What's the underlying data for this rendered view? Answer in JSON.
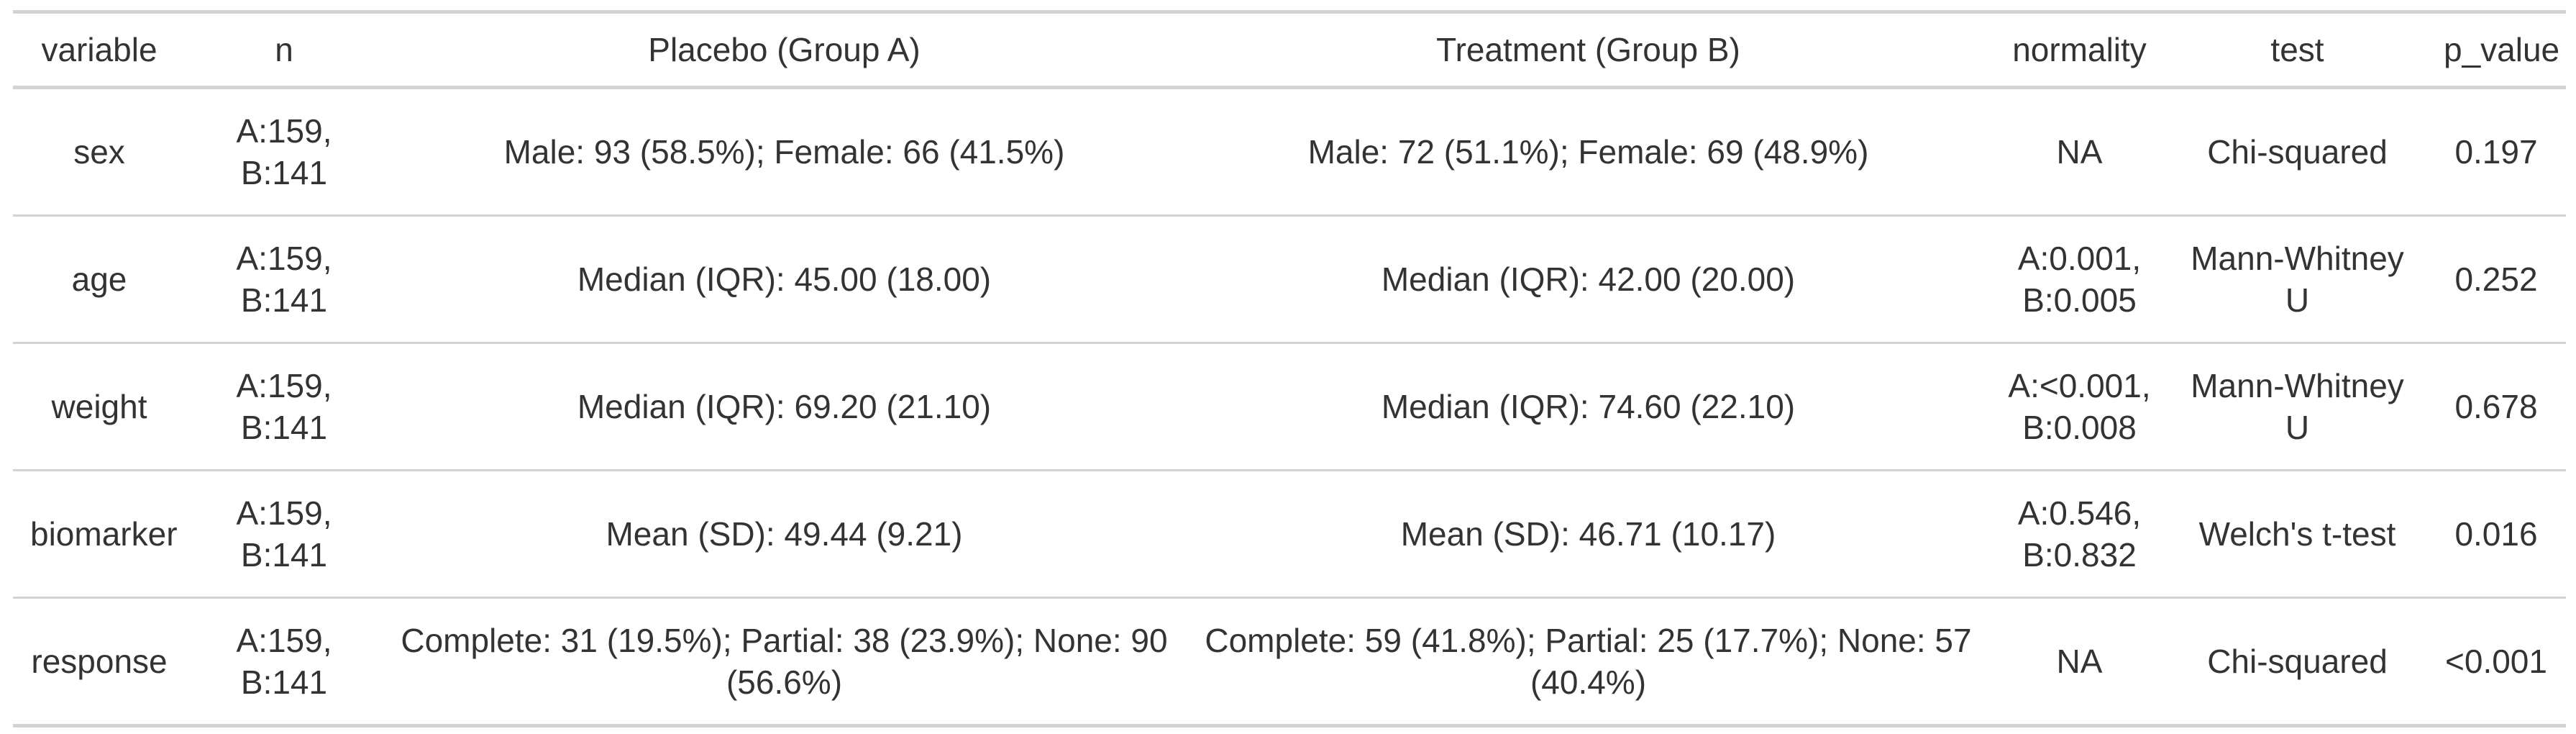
{
  "table": {
    "headers": [
      "variable",
      "n",
      "Placebo (Group A)",
      "Treatment (Group B)",
      "normality",
      "test",
      "p_value"
    ],
    "rows": [
      [
        "sex",
        "A:159, B:141",
        "Male: 93 (58.5%); Female: 66 (41.5%)",
        "Male: 72 (51.1%); Female: 69 (48.9%)",
        "NA",
        "Chi-squared",
        "0.197"
      ],
      [
        "age",
        "A:159, B:141",
        "Median (IQR): 45.00 (18.00)",
        "Median (IQR): 42.00 (20.00)",
        "A:0.001, B:0.005",
        "Mann-Whitney U",
        "0.252"
      ],
      [
        "weight",
        "A:159, B:141",
        "Median (IQR): 69.20 (21.10)",
        "Median (IQR): 74.60 (22.10)",
        "A:<0.001, B:0.008",
        "Mann-Whitney U",
        "0.678"
      ],
      [
        "biomarker",
        "A:159, B:141",
        "Mean (SD): 49.44 (9.21)",
        "Mean (SD): 46.71 (10.17)",
        "A:0.546, B:0.832",
        "Welch's t-test",
        "0.016"
      ],
      [
        "response",
        "A:159, B:141",
        "Complete: 31 (19.5%); Partial: 38 (23.9%); None: 90 (56.6%)",
        "Complete: 59 (41.8%); Partial: 25 (17.7%); None: 57 (40.4%)",
        "NA",
        "Chi-squared",
        "<0.001"
      ]
    ]
  }
}
